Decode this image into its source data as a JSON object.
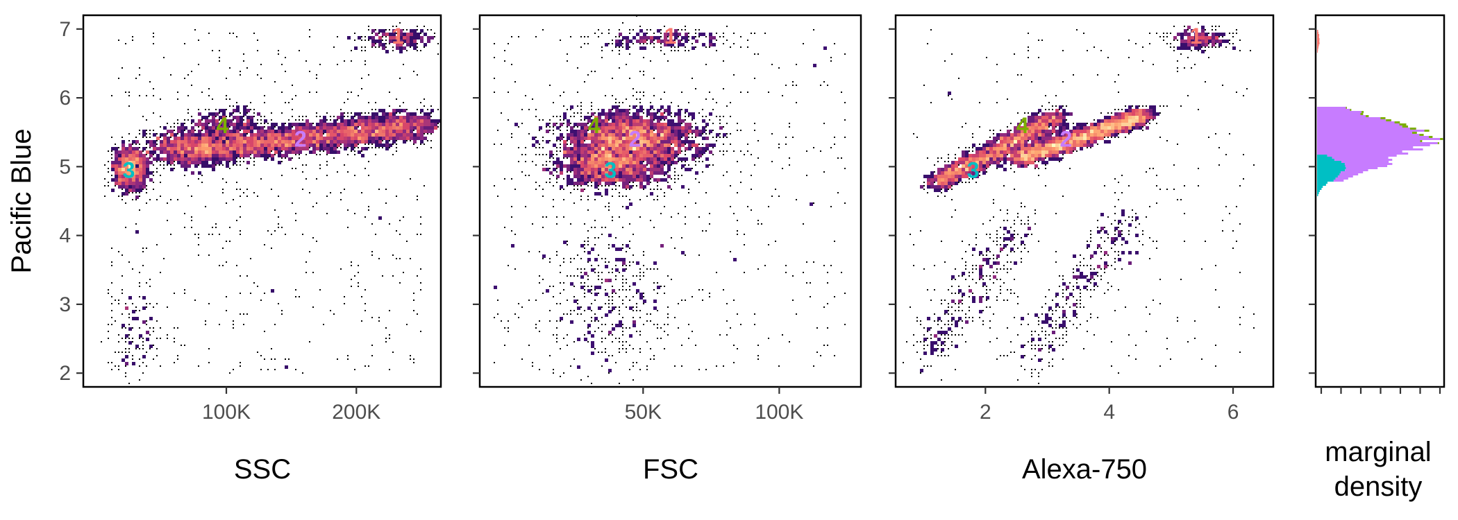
{
  "shared_y_axis": {
    "label": "Pacific Blue",
    "ticks": [
      2,
      3,
      4,
      5,
      6,
      7
    ],
    "range": [
      1.8,
      7.2
    ]
  },
  "marginal_panel": {
    "label_lines": [
      "marginal",
      "density"
    ]
  },
  "colors": {
    "cluster_1": "#F8766D",
    "cluster_2": "#C77CFF",
    "cluster_3": "#00BFC4",
    "cluster_4": "#7CAE00",
    "points": "#000000",
    "density_scale": [
      "#000004",
      "#3b0f70",
      "#8c2981",
      "#de4968",
      "#fe9f6d",
      "#fcfdbf"
    ]
  },
  "chart_data": [
    {
      "type": "scatter",
      "style": "dense scatter with density-colored hexbins",
      "xlabel": "SSC",
      "ylabel": "Pacific Blue",
      "xlim": [
        -10000,
        265000
      ],
      "ylim": [
        1.8,
        7.2
      ],
      "x_ticks": [
        {
          "value": 100000,
          "label": "100K"
        },
        {
          "value": 200000,
          "label": "200K"
        }
      ],
      "y_ticks": [
        2,
        3,
        4,
        5,
        6,
        7
      ],
      "clusters": [
        {
          "label": "1",
          "x": 232000,
          "y": 6.9,
          "color": "#F8766D"
        },
        {
          "label": "2",
          "x": 157000,
          "y": 5.4,
          "color": "#C77CFF"
        },
        {
          "label": "3",
          "x": 25000,
          "y": 4.95,
          "color": "#00BFC4"
        },
        {
          "label": "4",
          "x": 97000,
          "y": 5.6,
          "color": "#7CAE00"
        }
      ]
    },
    {
      "type": "scatter",
      "style": "dense scatter with density-colored hexbins",
      "xlabel": "FSC",
      "ylabel": "Pacific Blue",
      "xlim": [
        -10000,
        130000
      ],
      "ylim": [
        1.8,
        7.2
      ],
      "x_ticks": [
        {
          "value": 50000,
          "label": "50K"
        },
        {
          "value": 100000,
          "label": "100K"
        }
      ],
      "y_ticks": [
        2,
        3,
        4,
        5,
        6,
        7
      ],
      "clusters": [
        {
          "label": "1",
          "x": 60000,
          "y": 6.9,
          "color": "#F8766D"
        },
        {
          "label": "2",
          "x": 47000,
          "y": 5.4,
          "color": "#C77CFF"
        },
        {
          "label": "3",
          "x": 38000,
          "y": 4.95,
          "color": "#00BFC4"
        },
        {
          "label": "4",
          "x": 32000,
          "y": 5.6,
          "color": "#7CAE00"
        }
      ]
    },
    {
      "type": "scatter",
      "style": "dense scatter with density-colored hexbins",
      "xlabel": "Alexa-750",
      "ylabel": "Pacific Blue",
      "xlim": [
        0.55,
        6.65
      ],
      "ylim": [
        1.8,
        7.2
      ],
      "x_ticks": [
        {
          "value": 2,
          "label": "2"
        },
        {
          "value": 4,
          "label": "4"
        },
        {
          "value": 6,
          "label": "6"
        }
      ],
      "y_ticks": [
        2,
        3,
        4,
        5,
        6,
        7
      ],
      "clusters": [
        {
          "label": "1",
          "x": 5.4,
          "y": 6.9,
          "color": "#F8766D"
        },
        {
          "label": "2",
          "x": 3.3,
          "y": 5.4,
          "color": "#C77CFF"
        },
        {
          "label": "3",
          "x": 1.8,
          "y": 4.95,
          "color": "#00BFC4"
        },
        {
          "label": "4",
          "x": 2.6,
          "y": 5.6,
          "color": "#7CAE00"
        }
      ]
    },
    {
      "type": "area",
      "style": "stacked horizontal marginal density histogram",
      "xlabel": "marginal density",
      "ylim": [
        1.8,
        7.2
      ],
      "x_tick_count": 7,
      "series": [
        {
          "name": "1",
          "color": "#F8766D",
          "y_range": [
            6.6,
            7.0
          ],
          "peak_y": 6.85,
          "peak_fraction": 0.02
        },
        {
          "name": "2",
          "color": "#C77CFF",
          "y_range": [
            4.8,
            5.9
          ],
          "peak_y": 5.42,
          "peak_fraction": 0.86
        },
        {
          "name": "3",
          "color": "#00BFC4",
          "y_range": [
            4.6,
            5.2
          ],
          "peak_y": 4.98,
          "peak_fraction": 0.22
        },
        {
          "name": "4",
          "color": "#7CAE00",
          "y_range": [
            5.35,
            5.9
          ],
          "peak_y": 5.6,
          "peak_fraction": 0.05
        }
      ]
    }
  ]
}
